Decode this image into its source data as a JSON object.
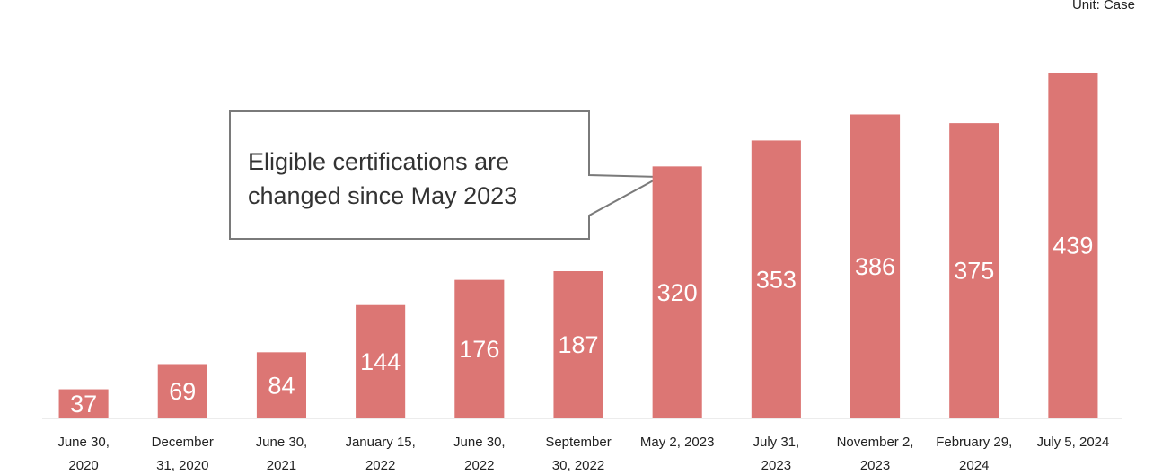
{
  "chart_data": {
    "type": "bar",
    "unit_note": "Unit: Case",
    "annotation": [
      "Eligible certifications are",
      "changed since May 2023"
    ],
    "categories": [
      "June 30,\n2020",
      "December\n31, 2020",
      "June 30,\n2021",
      "January 15,\n2022",
      "June 30,\n2022",
      "September\n30, 2022",
      "May 2, 2023",
      "July 31,\n2023",
      "November 2,\n2023",
      "February 29,\n2024",
      "July 5, 2024"
    ],
    "values": [
      37,
      69,
      84,
      144,
      176,
      187,
      320,
      353,
      386,
      375,
      439
    ],
    "color": "#dc7674",
    "ylim": [
      0,
      500
    ]
  }
}
